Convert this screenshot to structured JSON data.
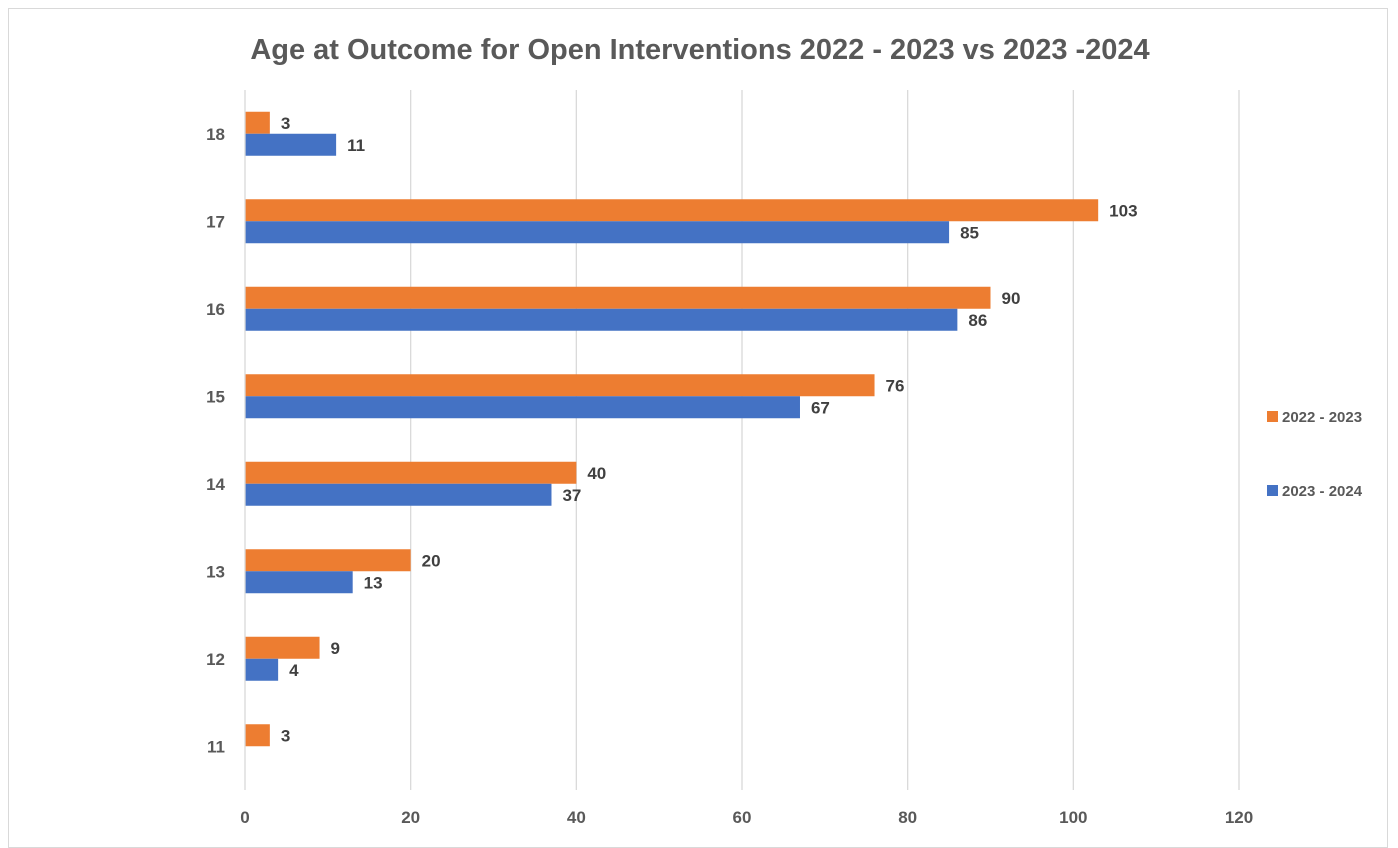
{
  "chart_data": {
    "type": "bar",
    "orientation": "horizontal",
    "title": "Age at Outcome for Open Interventions 2022 - 2023 vs 2023 -2024",
    "xlabel": "",
    "ylabel": "",
    "categories": [
      "18",
      "17",
      "16",
      "15",
      "14",
      "13",
      "12",
      "11"
    ],
    "series": [
      {
        "name": "2022 - 2023",
        "color": "#ED7D31",
        "values": [
          3,
          103,
          90,
          76,
          40,
          20,
          9,
          3
        ]
      },
      {
        "name": "2023 - 2024",
        "color": "#4472C4",
        "values": [
          11,
          85,
          86,
          67,
          37,
          13,
          4,
          null
        ]
      }
    ],
    "xlim": [
      0,
      120
    ],
    "x_ticks": [
      "0",
      "20",
      "40",
      "60",
      "80",
      "100",
      "120"
    ],
    "grid": true,
    "legend_position": "right",
    "data_labels": true
  }
}
